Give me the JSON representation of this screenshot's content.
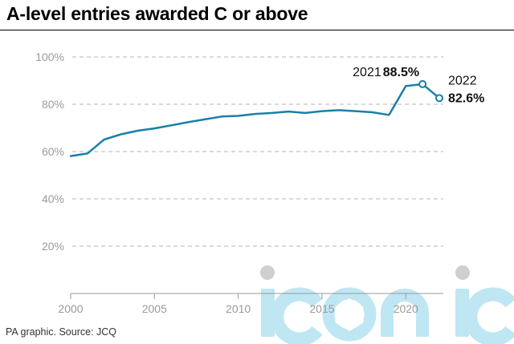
{
  "title": "A-level entries awarded C or above",
  "footer": "PA graphic. Source: JCQ",
  "watermark": {
    "description": "iconic",
    "color": "#bfe6f3"
  },
  "chart_data": {
    "type": "line",
    "title": "A-level entries awarded C or above",
    "xlabel": "",
    "ylabel": "",
    "xlim": [
      2000,
      2022.6
    ],
    "ylim": [
      0,
      100
    ],
    "grid": true,
    "line_color": "#1b7fa8",
    "yticks": [
      {
        "value": 20,
        "label": "20%"
      },
      {
        "value": 40,
        "label": "40%"
      },
      {
        "value": 60,
        "label": "60%"
      },
      {
        "value": 80,
        "label": "80%"
      },
      {
        "value": 100,
        "label": "100%"
      }
    ],
    "xticks": [
      {
        "value": 2000,
        "label": "2000"
      },
      {
        "value": 2005,
        "label": "2005"
      },
      {
        "value": 2010,
        "label": "2010"
      },
      {
        "value": 2015,
        "label": "2015"
      },
      {
        "value": 2020,
        "label": "2020"
      }
    ],
    "series": [
      {
        "x": [
          2000,
          2001,
          2002,
          2003,
          2004,
          2005,
          2006,
          2007,
          2008,
          2009,
          2010,
          2011,
          2012,
          2013,
          2014,
          2015,
          2016,
          2017,
          2018,
          2019,
          2020,
          2021,
          2022
        ],
        "y": [
          58.1,
          59.2,
          65.1,
          67.3,
          68.8,
          69.8,
          71.1,
          72.4,
          73.6,
          74.8,
          75.1,
          75.9,
          76.3,
          76.9,
          76.3,
          77.1,
          77.5,
          77.1,
          76.6,
          75.5,
          87.7,
          88.5,
          82.6
        ]
      }
    ],
    "annotations": [
      {
        "x": 2021,
        "y": 88.5,
        "year": "2021",
        "value": "88.5%"
      },
      {
        "x": 2022,
        "y": 82.6,
        "year": "2022",
        "value": "82.6%"
      }
    ]
  }
}
